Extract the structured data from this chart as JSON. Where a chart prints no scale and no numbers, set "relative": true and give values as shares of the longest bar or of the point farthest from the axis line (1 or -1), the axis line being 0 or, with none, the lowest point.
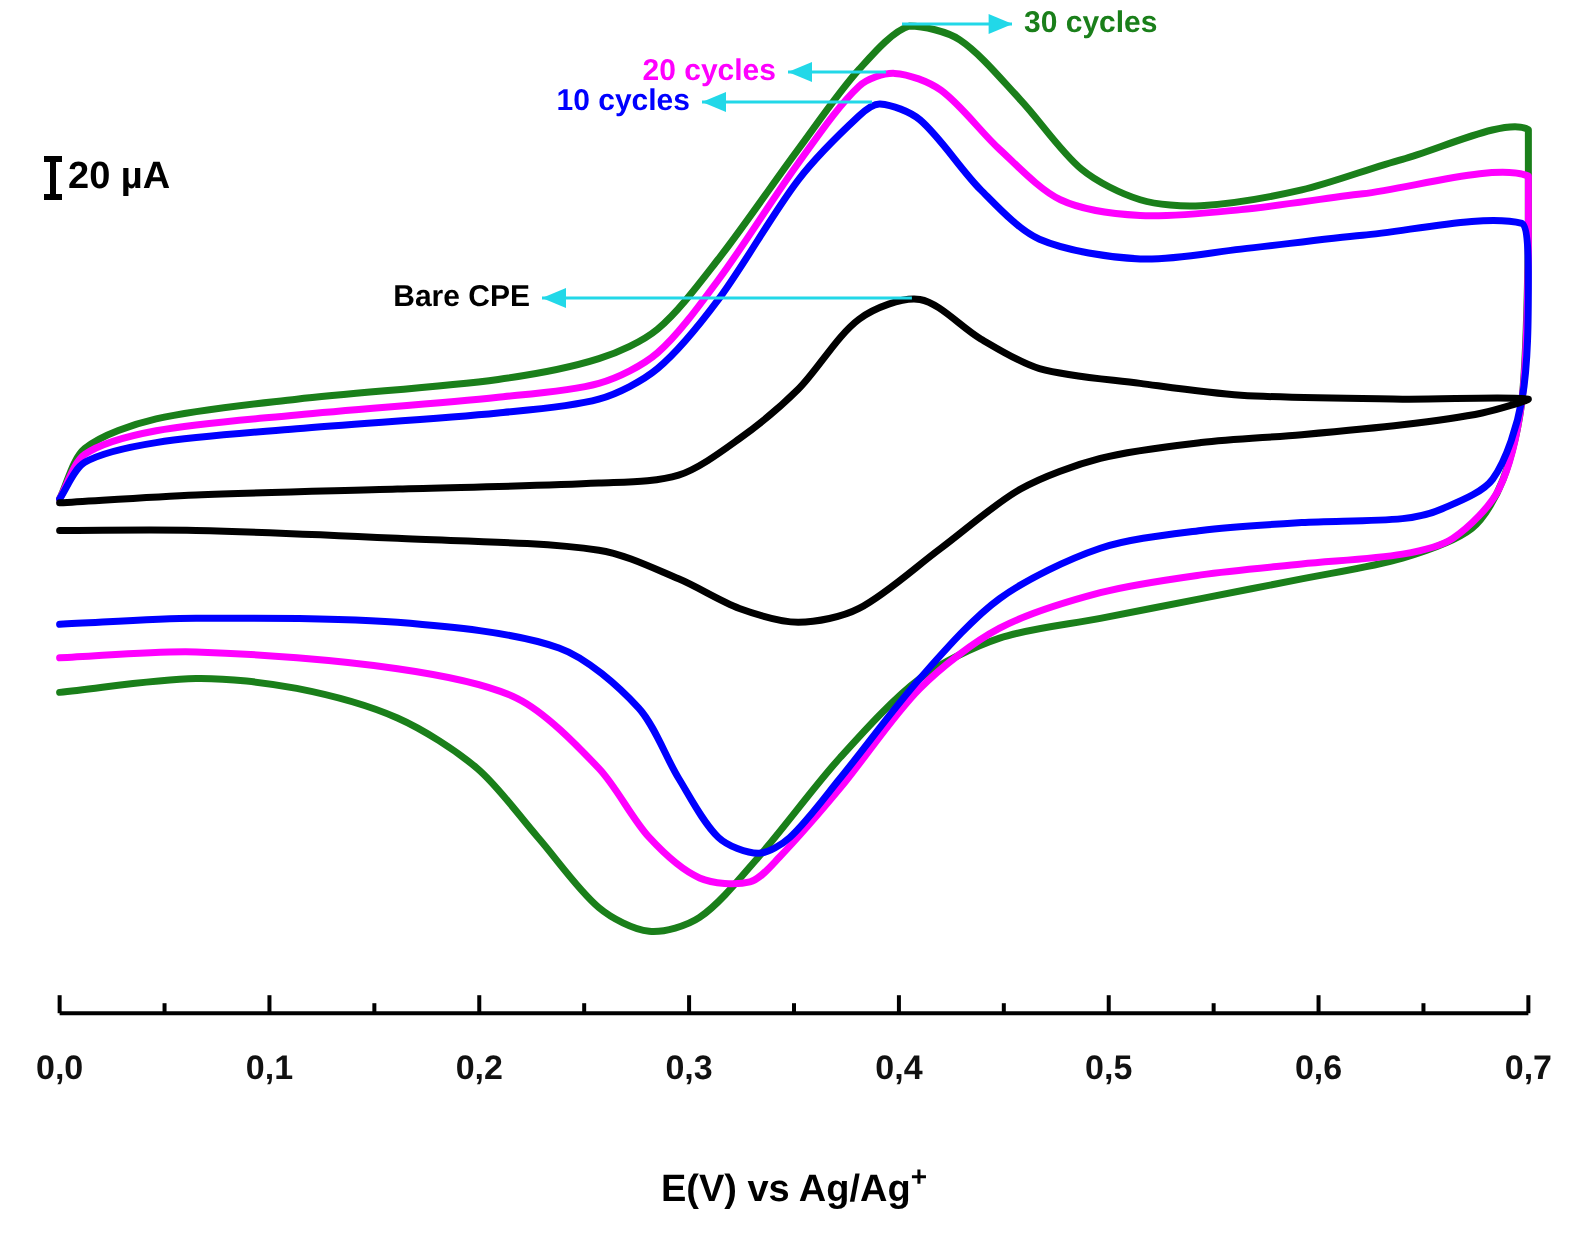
{
  "chart_data": {
    "type": "line",
    "relative": true,
    "xlabel": "E(V) vs Ag/Ag$^{+}$",
    "annotations": [
      "20 µA"
    ],
    "xlim": [
      0,
      0.7
    ],
    "xticks": [
      {
        "value": 0,
        "label": "0,0"
      },
      {
        "value": 0.05,
        "label": null
      },
      {
        "value": 0.1,
        "label": "0,1"
      },
      {
        "value": 0.15,
        "label": null
      },
      {
        "value": 0.2,
        "label": "0,2"
      },
      {
        "value": 0.25,
        "label": null
      },
      {
        "value": 0.3,
        "label": "0,3"
      },
      {
        "value": 0.35,
        "label": null
      },
      {
        "value": 0.4,
        "label": "0,4"
      },
      {
        "value": 0.45,
        "label": null
      },
      {
        "value": 0.5,
        "label": "0,5"
      },
      {
        "value": 0.55,
        "label": null
      },
      {
        "value": 0.6,
        "label": "0,6"
      },
      {
        "value": 0.65,
        "label": null
      },
      {
        "value": 0.7,
        "label": "0,7"
      }
    ],
    "grid": false,
    "legend": false,
    "marker": "none",
    "line_style": "solid",
    "series": [
      {
        "name": "Bare CPE",
        "color": "#000000",
        "x": [
          0,
          0.065,
          0.161,
          0.257,
          0.295,
          0.324,
          0.352,
          0.381,
          0.41,
          0.439,
          0.467,
          0.515,
          0.563,
          0.64,
          0.7,
          0.678,
          0.64,
          0.592,
          0.544,
          0.496,
          0.458,
          0.42,
          0.381,
          0.352,
          0.324,
          0.295,
          0.257,
          0.161,
          0.065,
          0
        ],
        "values": [
          0.517,
          0.525,
          0.531,
          0.537,
          0.545,
          0.582,
          0.632,
          0.703,
          0.723,
          0.683,
          0.653,
          0.638,
          0.626,
          0.622,
          0.622,
          0.608,
          0.596,
          0.586,
          0.578,
          0.562,
          0.531,
          0.471,
          0.41,
          0.396,
          0.41,
          0.44,
          0.469,
          0.481,
          0.489,
          0.489
        ]
      },
      {
        "name": "10 cycles",
        "color": "#0000ff",
        "x": [
          0,
          0.012,
          0.046,
          0.113,
          0.209,
          0.257,
          0.285,
          0.314,
          0.352,
          0.381,
          0.391,
          0.41,
          0.439,
          0.467,
          0.515,
          0.563,
          0.621,
          0.697,
          0.7,
          0.697,
          0.683,
          0.659,
          0.64,
          0.592,
          0.544,
          0.496,
          0.448,
          0.41,
          0.372,
          0.348,
          0.333,
          0.314,
          0.295,
          0.276,
          0.238,
          0.161,
          0.065,
          0
        ],
        "values": [
          0.521,
          0.558,
          0.578,
          0.592,
          0.608,
          0.622,
          0.653,
          0.723,
          0.844,
          0.909,
          0.921,
          0.905,
          0.834,
          0.784,
          0.764,
          0.774,
          0.788,
          0.8,
          0.743,
          0.622,
          0.541,
          0.511,
          0.501,
          0.497,
          0.489,
          0.471,
          0.42,
          0.339,
          0.238,
          0.178,
          0.162,
          0.178,
          0.238,
          0.309,
          0.37,
          0.396,
          0.4,
          0.394
        ]
      },
      {
        "name": "20 cycles",
        "color": "#ff00ff",
        "x": [
          0,
          0.012,
          0.046,
          0.113,
          0.209,
          0.257,
          0.285,
          0.314,
          0.352,
          0.381,
          0.398,
          0.42,
          0.448,
          0.477,
          0.515,
          0.563,
          0.621,
          0.7,
          0.7,
          0.697,
          0.686,
          0.664,
          0.64,
          0.592,
          0.544,
          0.496,
          0.448,
          0.41,
          0.372,
          0.343,
          0.329,
          0.305,
          0.281,
          0.257,
          0.218,
          0.161,
          0.065,
          0
        ],
        "values": [
          0.521,
          0.566,
          0.59,
          0.606,
          0.624,
          0.638,
          0.669,
          0.743,
          0.861,
          0.939,
          0.952,
          0.935,
          0.875,
          0.824,
          0.808,
          0.814,
          0.83,
          0.848,
          0.764,
          0.622,
          0.531,
          0.481,
          0.465,
          0.455,
          0.444,
          0.426,
          0.39,
          0.329,
          0.228,
          0.158,
          0.133,
          0.137,
          0.178,
          0.248,
          0.319,
          0.349,
          0.366,
          0.36
        ]
      },
      {
        "name": "30 cycles",
        "color": "#1a7f1a",
        "x": [
          0,
          0.012,
          0.046,
          0.113,
          0.209,
          0.257,
          0.285,
          0.314,
          0.352,
          0.381,
          0.405,
          0.429,
          0.458,
          0.487,
          0.515,
          0.544,
          0.592,
          0.64,
          0.7,
          0.7,
          0.697,
          0.688,
          0.673,
          0.64,
          0.592,
          0.544,
          0.496,
          0.448,
          0.41,
          0.372,
          0.333,
          0.305,
          0.281,
          0.257,
          0.228,
          0.199,
          0.161,
          0.113,
          0.065,
          0
        ],
        "values": [
          0.521,
          0.572,
          0.602,
          0.622,
          0.642,
          0.663,
          0.693,
          0.764,
          0.875,
          0.956,
          1,
          0.986,
          0.925,
          0.855,
          0.824,
          0.818,
          0.834,
          0.865,
          0.895,
          0.784,
          0.622,
          0.541,
          0.491,
          0.461,
          0.44,
          0.42,
          0.4,
          0.38,
          0.339,
          0.259,
          0.158,
          0.097,
          0.083,
          0.107,
          0.178,
          0.248,
          0.299,
          0.329,
          0.339,
          0.325
        ]
      }
    ]
  }
}
